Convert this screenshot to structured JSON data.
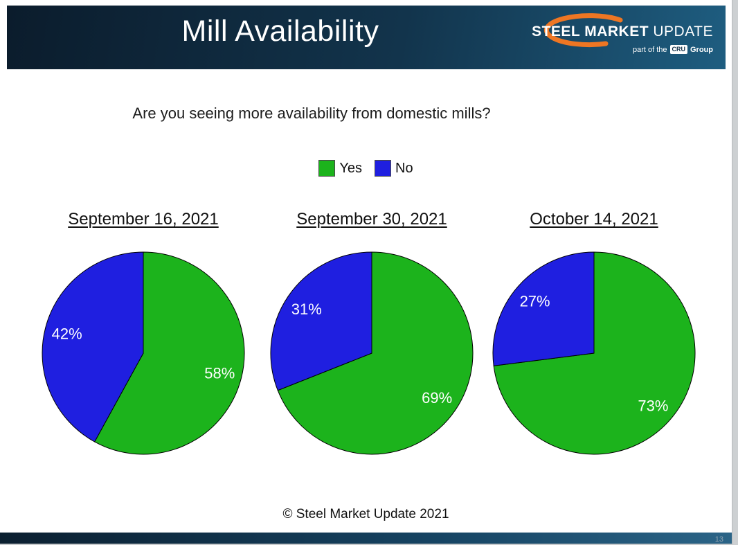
{
  "page": {
    "title": "Mill Availability",
    "footer": "© Steel Market Update 2021",
    "page_number": "13"
  },
  "logo": {
    "word1": "STEEL",
    "word2": "MARKET",
    "word3": "UPDATE",
    "tagline_prefix": "part of the",
    "tagline_box": "CRU",
    "tagline_suffix": "Group",
    "accent_color": "#EE7623"
  },
  "chart_data": {
    "type": "pie",
    "title": "Mill Availability",
    "question": "Are you seeing more availability from domestic mills?",
    "legend": [
      {
        "label": "Yes",
        "color": "#1CB31C"
      },
      {
        "label": "No",
        "color": "#1F1FE0"
      }
    ],
    "colors": {
      "Yes": "#1CB31C",
      "No": "#1F1FE0"
    },
    "label_color": "#FFFFFF",
    "layout": {
      "start_angle_deg": 0,
      "direction": "clockwise",
      "labels": "inside"
    },
    "charts": [
      {
        "title": "September 16, 2021",
        "slices": [
          {
            "label": "Yes",
            "value": 58
          },
          {
            "label": "No",
            "value": 42
          }
        ]
      },
      {
        "title": "September 30, 2021",
        "slices": [
          {
            "label": "Yes",
            "value": 69
          },
          {
            "label": "No",
            "value": 31
          }
        ]
      },
      {
        "title": "October 14, 2021",
        "slices": [
          {
            "label": "Yes",
            "value": 73
          },
          {
            "label": "No",
            "value": 27
          }
        ]
      }
    ]
  }
}
